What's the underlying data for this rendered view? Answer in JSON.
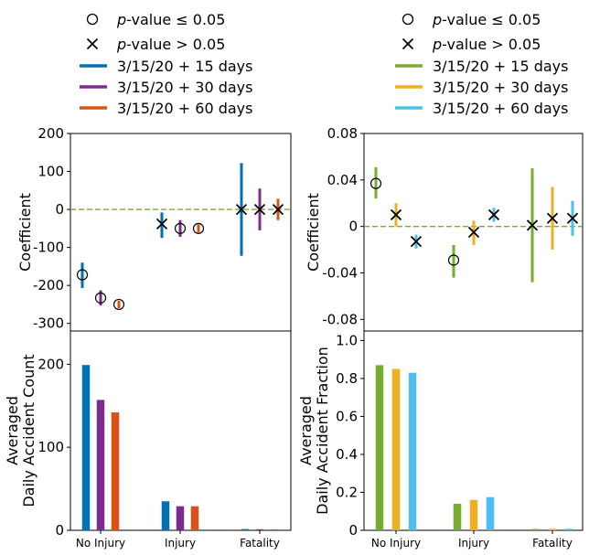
{
  "legends": [
    {
      "marker_entries": [
        {
          "marker": "circle",
          "prefix": "p",
          "text": "-value ≤ 0.05"
        },
        {
          "marker": "x",
          "prefix": "p",
          "text": "-value > 0.05"
        }
      ],
      "line_entries": [
        {
          "label": "3/15/20 + 15 days",
          "color": "#0072b2"
        },
        {
          "label": "3/15/20 + 30 days",
          "color": "#7b2d8e"
        },
        {
          "label": "3/15/20 + 60 days",
          "color": "#d95319"
        }
      ]
    },
    {
      "marker_entries": [
        {
          "marker": "circle",
          "prefix": "p",
          "text": "-value ≤ 0.05"
        },
        {
          "marker": "x",
          "prefix": "p",
          "text": "-value > 0.05"
        }
      ],
      "line_entries": [
        {
          "label": "3/15/20 + 15 days",
          "color": "#77ac30"
        },
        {
          "label": "3/15/20 + 30 days",
          "color": "#edb120"
        },
        {
          "label": "3/15/20 + 60 days",
          "color": "#4dbeee"
        }
      ]
    }
  ],
  "chart_data": [
    {
      "id": "coef-count",
      "type": "scatter",
      "title": "",
      "ylabel": "Coefficient",
      "ylim": [
        -320,
        200
      ],
      "yticks": [
        200,
        100,
        0,
        -100,
        -200,
        -300
      ],
      "ytick_labels": [
        "200",
        "100",
        "0",
        "-100",
        "-200",
        "-300"
      ],
      "categories": [
        "No Injury",
        "Injury",
        "Fatality"
      ],
      "zero_line_color": "#77ac30",
      "series": [
        {
          "name": "3/15/20 + 15 days",
          "color": "#0072b2",
          "points": [
            {
              "category": "No Injury",
              "value": -172,
              "low": -207,
              "high": -140,
              "significant": true
            },
            {
              "category": "Injury",
              "value": -38,
              "low": -75,
              "high": -8,
              "significant": false
            },
            {
              "category": "Fatality",
              "value": 0,
              "low": -122,
              "high": 122,
              "significant": false
            }
          ]
        },
        {
          "name": "3/15/20 + 30 days",
          "color": "#7b2d8e",
          "points": [
            {
              "category": "No Injury",
              "value": -233,
              "low": -253,
              "high": -213,
              "significant": true
            },
            {
              "category": "Injury",
              "value": -50,
              "low": -72,
              "high": -28,
              "significant": true
            },
            {
              "category": "Fatality",
              "value": 0,
              "low": -55,
              "high": 55,
              "significant": false
            }
          ]
        },
        {
          "name": "3/15/20 + 60 days",
          "color": "#d95319",
          "points": [
            {
              "category": "No Injury",
              "value": -250,
              "low": -260,
              "high": -240,
              "significant": true
            },
            {
              "category": "Injury",
              "value": -50,
              "low": -61,
              "high": -39,
              "significant": true
            },
            {
              "category": "Fatality",
              "value": 0,
              "low": -28,
              "high": 28,
              "significant": false
            }
          ]
        }
      ]
    },
    {
      "id": "coef-fraction",
      "type": "scatter",
      "title": "",
      "ylabel": "Coefficient",
      "ylim": [
        -0.09,
        0.08
      ],
      "yticks": [
        0.08,
        0.04,
        0,
        -0.04,
        -0.08
      ],
      "ytick_labels": [
        "0.08",
        "0.04",
        "0",
        "-0.04",
        "-0.08"
      ],
      "categories": [
        "No Injury",
        "Injury",
        "Fatality"
      ],
      "zero_line_color": "#77ac30",
      "series": [
        {
          "name": "3/15/20 + 15 days",
          "color": "#77ac30",
          "points": [
            {
              "category": "No Injury",
              "value": 0.037,
              "low": 0.024,
              "high": 0.051,
              "significant": true
            },
            {
              "category": "Injury",
              "value": -0.029,
              "low": -0.044,
              "high": -0.016,
              "significant": true
            },
            {
              "category": "Fatality",
              "value": 0.001,
              "low": -0.048,
              "high": 0.05,
              "significant": false
            }
          ]
        },
        {
          "name": "3/15/20 + 30 days",
          "color": "#edb120",
          "points": [
            {
              "category": "No Injury",
              "value": 0.01,
              "low": 0.0,
              "high": 0.02,
              "significant": false
            },
            {
              "category": "Injury",
              "value": -0.005,
              "low": -0.016,
              "high": 0.005,
              "significant": false
            },
            {
              "category": "Fatality",
              "value": 0.007,
              "low": -0.02,
              "high": 0.034,
              "significant": false
            }
          ]
        },
        {
          "name": "3/15/20 + 60 days",
          "color": "#4dbeee",
          "points": [
            {
              "category": "No Injury",
              "value": -0.013,
              "low": -0.019,
              "high": -0.007,
              "significant": false
            },
            {
              "category": "Injury",
              "value": 0.01,
              "low": 0.004,
              "high": 0.016,
              "significant": false
            },
            {
              "category": "Fatality",
              "value": 0.007,
              "low": -0.008,
              "high": 0.022,
              "significant": false
            }
          ]
        }
      ]
    },
    {
      "id": "count-bars",
      "type": "bar",
      "title": "",
      "ylabel_lines": [
        "Averaged",
        "Daily Accident Count"
      ],
      "ylim": [
        0,
        240
      ],
      "yticks": [
        200,
        100,
        0
      ],
      "ytick_labels": [
        "200",
        "100",
        "0"
      ],
      "categories": [
        "No Injury",
        "Injury",
        "Fatality"
      ],
      "series": [
        {
          "name": "3/15/20 + 15 days",
          "color": "#0072b2",
          "values": [
            199,
            35,
            1.5
          ]
        },
        {
          "name": "3/15/20 + 30 days",
          "color": "#7b2d8e",
          "values": [
            157,
            29,
            1.3
          ]
        },
        {
          "name": "3/15/20 + 60 days",
          "color": "#d95319",
          "values": [
            142,
            29,
            1.2
          ]
        }
      ]
    },
    {
      "id": "fraction-bars",
      "type": "bar",
      "title": "",
      "ylabel_lines": [
        "Averaged",
        "Daily Accident Fraction"
      ],
      "ylim": [
        0,
        1.05
      ],
      "yticks": [
        1.0,
        0.8,
        0.6,
        0.4,
        0.2,
        0
      ],
      "ytick_labels": [
        "1.0",
        "0.8",
        "0.6",
        "0.4",
        "0.2",
        "0"
      ],
      "categories": [
        "No Injury",
        "Injury",
        "Fatality"
      ],
      "series": [
        {
          "name": "3/15/20 + 15 days",
          "color": "#77ac30",
          "values": [
            0.87,
            0.14,
            0.007
          ]
        },
        {
          "name": "3/15/20 + 30 days",
          "color": "#edb120",
          "values": [
            0.85,
            0.16,
            0.008
          ]
        },
        {
          "name": "3/15/20 + 60 days",
          "color": "#4dbeee",
          "values": [
            0.83,
            0.175,
            0.008
          ]
        }
      ]
    }
  ]
}
